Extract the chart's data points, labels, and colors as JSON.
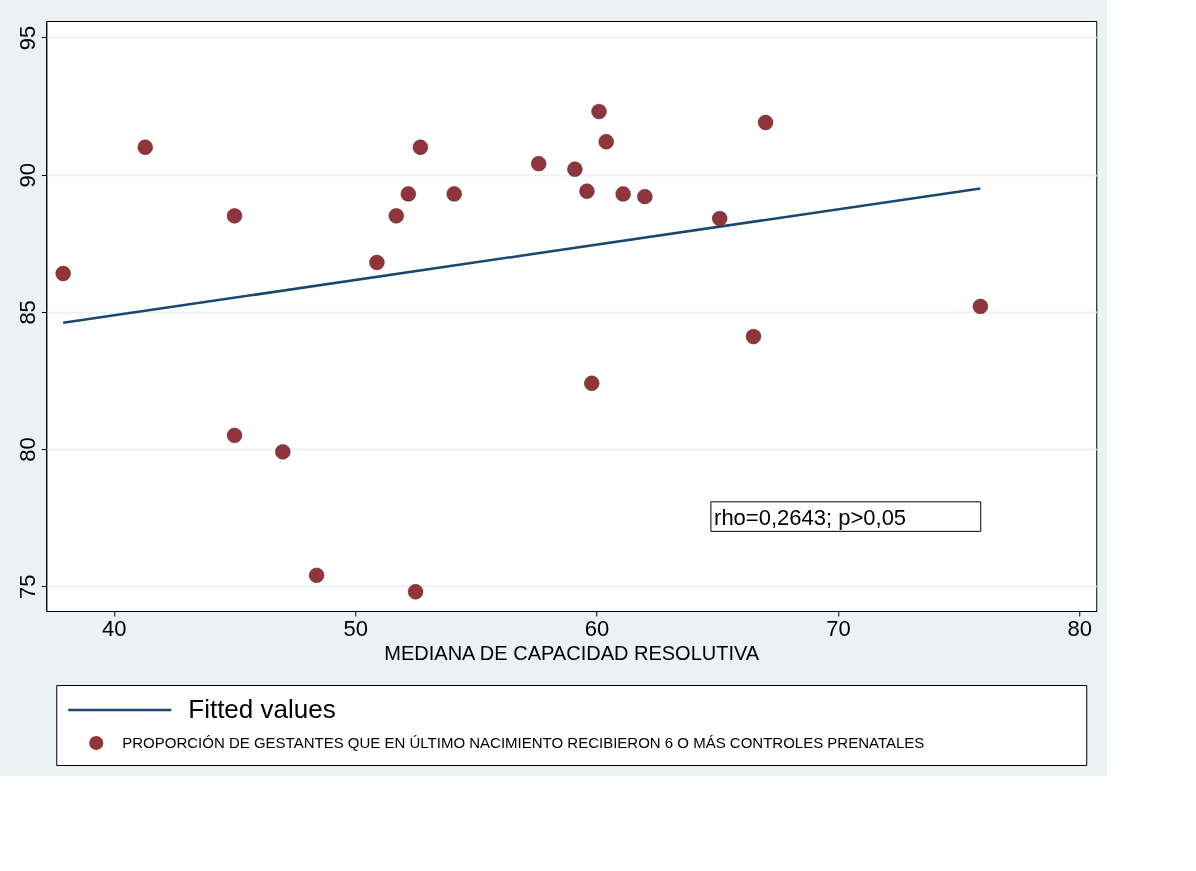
{
  "chart_data": {
    "type": "scatter",
    "xlabel": "MEDIANA DE CAPACIDAD RESOLUTIVA",
    "xlim": [
      37.2,
      80.7
    ],
    "xticks": [
      40,
      50,
      60,
      70,
      80
    ],
    "ylim": [
      74.1,
      95.6
    ],
    "yticks": [
      75,
      80,
      85,
      90,
      95
    ],
    "grid": "y",
    "legend": "bottom",
    "annotations": [
      "rho=0,2643; p>0,05"
    ],
    "series": [
      {
        "name": "Fitted values",
        "type": "line",
        "color": "#1a476f",
        "line_style": "solid",
        "x": [
          37.9,
          75.9
        ],
        "values": [
          84.6,
          89.5
        ]
      },
      {
        "name": "PROPORCIÓN DE GESTANTES QUE EN ÚLTIMO NACIMIENTO RECIBIERON 6 O MÁS CONTROLES PRENATALES",
        "marker": "circle",
        "color": "#90353b",
        "x": [
          37.9,
          41.3,
          45.0,
          45.0,
          47.0,
          48.4,
          50.9,
          51.7,
          52.2,
          52.5,
          52.7,
          54.1,
          57.6,
          59.1,
          59.6,
          59.8,
          60.1,
          60.4,
          61.1,
          62.0,
          65.1,
          66.5,
          67.0,
          75.9
        ],
        "values": [
          86.4,
          91.0,
          88.5,
          80.5,
          79.9,
          75.4,
          86.8,
          88.5,
          89.3,
          74.8,
          91.0,
          89.3,
          90.4,
          90.2,
          89.4,
          82.4,
          92.3,
          91.2,
          89.3,
          89.2,
          88.4,
          84.1,
          91.9,
          85.2
        ]
      }
    ]
  }
}
